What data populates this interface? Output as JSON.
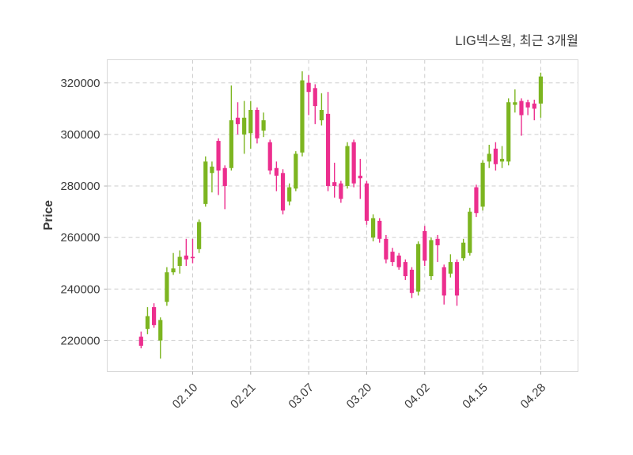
{
  "header": {
    "title": "LIG넥스원, 최근 3개월"
  },
  "chart_data": {
    "type": "candlestick",
    "title": "LIG넥스원, 최근 3개월",
    "xlabel": "",
    "ylabel": "Price",
    "ylim": [
      208000,
      329000
    ],
    "y_ticks": [
      220000,
      240000,
      260000,
      280000,
      300000,
      320000
    ],
    "x_tick_labels": [
      "02.10",
      "02.21",
      "03.07",
      "03.20",
      "04.02",
      "04.15",
      "04.28"
    ],
    "x_tick_candle_indices": [
      8,
      17,
      26,
      35,
      44,
      53,
      62
    ],
    "grid": "dashed",
    "legend": "none",
    "colors": {
      "up": "#7cb520",
      "down": "#ec2e8e",
      "grid": "#cdcdcd",
      "spine": "#d9d9d9",
      "tick": "#b0b0b0",
      "text": "#3a3a3a",
      "background": "#ffffff"
    },
    "ohlc_order": [
      "open",
      "high",
      "low",
      "close"
    ],
    "candles": [
      [
        221500,
        223500,
        217000,
        218000
      ],
      [
        224500,
        233000,
        222500,
        229500
      ],
      [
        233000,
        234500,
        225000,
        226000
      ],
      [
        220000,
        229000,
        213000,
        228000
      ],
      [
        235000,
        248500,
        233500,
        246500
      ],
      [
        246500,
        254000,
        245500,
        248000
      ],
      [
        249000,
        255000,
        246000,
        252500
      ],
      [
        253000,
        259500,
        249000,
        251500
      ],
      [
        252500,
        259500,
        250000,
        252000
      ],
      [
        255500,
        267000,
        254000,
        266000
      ],
      [
        273000,
        291500,
        272000,
        289500
      ],
      [
        285000,
        289500,
        277500,
        287500
      ],
      [
        297500,
        298500,
        276500,
        286000
      ],
      [
        287000,
        288000,
        271000,
        280000
      ],
      [
        287000,
        319000,
        286000,
        305500
      ],
      [
        306500,
        312500,
        300000,
        304000
      ],
      [
        300000,
        313000,
        292500,
        306500
      ],
      [
        300500,
        313000,
        294500,
        309500
      ],
      [
        309500,
        310500,
        296500,
        298500
      ],
      [
        301500,
        308500,
        299000,
        305500
      ],
      [
        297000,
        298000,
        284500,
        286000
      ],
      [
        287000,
        289500,
        278000,
        284000
      ],
      [
        285000,
        286500,
        269000,
        270500
      ],
      [
        274000,
        281000,
        272500,
        279500
      ],
      [
        279000,
        293500,
        278000,
        292500
      ],
      [
        293000,
        324500,
        291500,
        321000
      ],
      [
        320000,
        323000,
        307500,
        316500
      ],
      [
        318000,
        319500,
        304000,
        311000
      ],
      [
        305500,
        316000,
        303500,
        309500
      ],
      [
        308000,
        316500,
        278000,
        280000
      ],
      [
        281500,
        289000,
        275500,
        280000
      ],
      [
        281000,
        282000,
        273500,
        275000
      ],
      [
        280000,
        297000,
        279000,
        295500
      ],
      [
        297000,
        298000,
        279500,
        281000
      ],
      [
        284000,
        290500,
        275000,
        283000
      ],
      [
        281000,
        282000,
        265000,
        266500
      ],
      [
        260000,
        269000,
        258500,
        267500
      ],
      [
        266500,
        267500,
        258000,
        259500
      ],
      [
        259500,
        261000,
        250000,
        251500
      ],
      [
        254500,
        256000,
        249000,
        250500
      ],
      [
        253000,
        254000,
        247500,
        248500
      ],
      [
        250500,
        251500,
        243500,
        245000
      ],
      [
        247500,
        248500,
        236500,
        238500
      ],
      [
        239000,
        258500,
        237500,
        257500
      ],
      [
        262500,
        264500,
        249000,
        251000
      ],
      [
        245000,
        260000,
        243500,
        259000
      ],
      [
        259500,
        261000,
        250500,
        257000
      ],
      [
        248500,
        249500,
        234000,
        237500
      ],
      [
        246000,
        253500,
        244500,
        250500
      ],
      [
        250500,
        251500,
        233500,
        237500
      ],
      [
        252000,
        259500,
        251000,
        258000
      ],
      [
        254000,
        271500,
        253000,
        270000
      ],
      [
        279500,
        280500,
        268000,
        269500
      ],
      [
        272000,
        290000,
        270500,
        289000
      ],
      [
        289500,
        296000,
        287000,
        292500
      ],
      [
        294500,
        297000,
        286000,
        288500
      ],
      [
        289500,
        295500,
        287000,
        290500
      ],
      [
        289500,
        314000,
        288000,
        312500
      ],
      [
        311500,
        317500,
        308500,
        312500
      ],
      [
        313000,
        314000,
        299500,
        307500
      ],
      [
        312500,
        313500,
        307500,
        310500
      ],
      [
        312000,
        313500,
        305500,
        310000
      ],
      [
        312000,
        324000,
        306500,
        322500
      ]
    ]
  }
}
